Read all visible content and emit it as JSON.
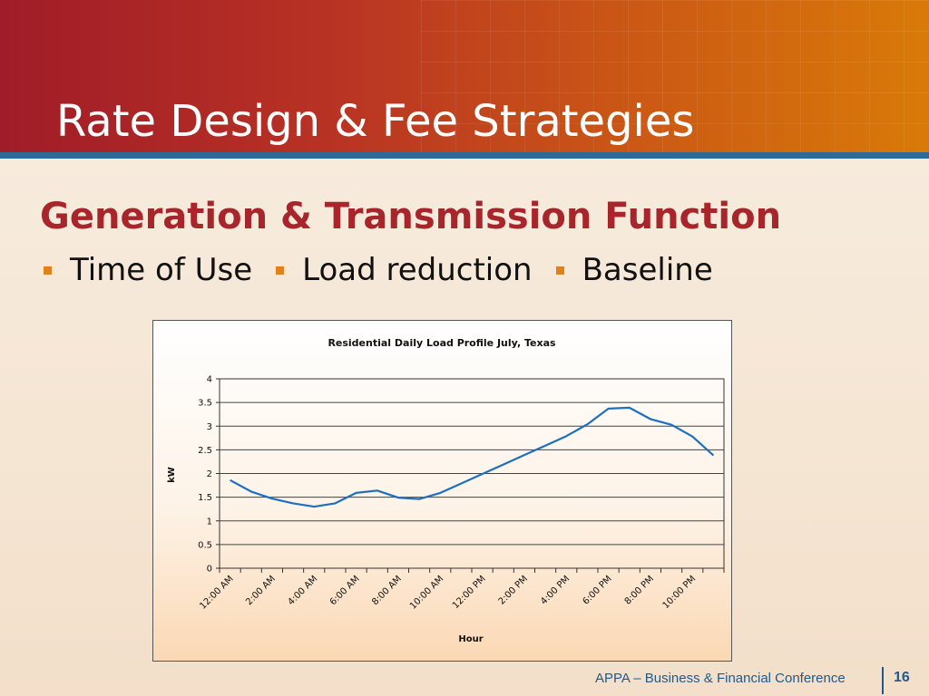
{
  "slide": {
    "title": "Rate Design & Fee Strategies",
    "subtitle": "Generation & Transmission Function",
    "bullets": [
      "Time of Use",
      "Load reduction",
      "Baseline"
    ],
    "footer": "APPA – Business & Financial Conference",
    "page_number": "16",
    "colors": {
      "header_red": "#a01c28",
      "header_orange": "#d97a08",
      "subtitle": "#a8252c",
      "bullet": "#e0821a",
      "accent_blue": "#2a6b9c",
      "line": "#1e6fc0"
    }
  },
  "chart_data": {
    "type": "line",
    "title": "Residential Daily Load Profile July, Texas",
    "xlabel": "Hour",
    "ylabel": "kW",
    "ylim": [
      0,
      4
    ],
    "yticks": [
      "0",
      "0.5",
      "1",
      "1.5",
      "2",
      "2.5",
      "3",
      "3.5",
      "4"
    ],
    "categories": [
      "12:00 AM",
      "1:00 AM",
      "2:00 AM",
      "3:00 AM",
      "4:00 AM",
      "5:00 AM",
      "6:00 AM",
      "7:00 AM",
      "8:00 AM",
      "9:00 AM",
      "10:00 AM",
      "11:00 AM",
      "12:00 PM",
      "1:00 PM",
      "2:00 PM",
      "3:00 PM",
      "4:00 PM",
      "5:00 PM",
      "6:00 PM",
      "7:00 PM",
      "8:00 PM",
      "9:00 PM",
      "10:00 PM",
      "11:00 PM"
    ],
    "xtick_labels": [
      "12:00 AM",
      "2:00 AM",
      "4:00 AM",
      "6:00 AM",
      "8:00 AM",
      "10:00 AM",
      "12:00 PM",
      "2:00 PM",
      "4:00 PM",
      "6:00 PM",
      "8:00 PM",
      "10:00 PM"
    ],
    "series": [
      {
        "values": [
          1.86,
          1.62,
          1.47,
          1.37,
          1.3,
          1.37,
          1.59,
          1.64,
          1.49,
          1.46,
          1.59,
          1.79,
          1.99,
          2.19,
          2.39,
          2.59,
          2.79,
          3.04,
          3.37,
          3.39,
          3.15,
          3.03,
          2.78,
          2.38
        ]
      }
    ],
    "grid": true,
    "legend": "none"
  }
}
